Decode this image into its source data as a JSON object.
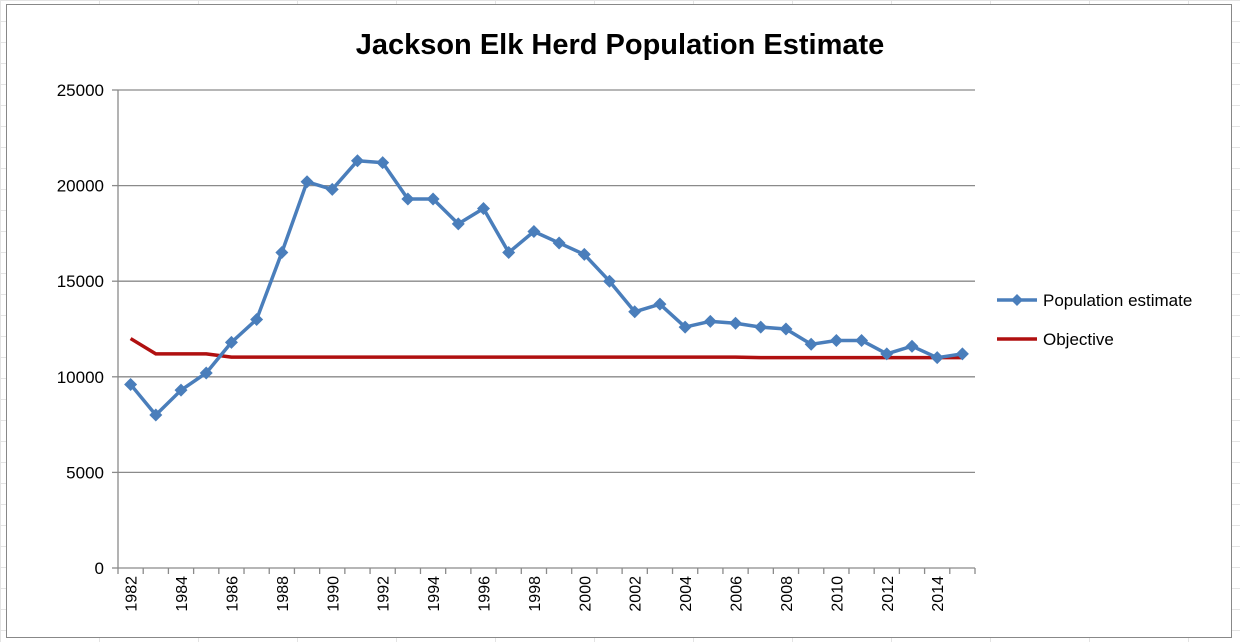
{
  "chart_data": {
    "type": "line",
    "title": "Jackson Elk Herd Population Estimate",
    "xlabel": "",
    "ylabel": "",
    "ylim": [
      0,
      25000
    ],
    "yticks": [
      0,
      5000,
      10000,
      15000,
      20000,
      25000
    ],
    "grid": true,
    "legend_position": "right",
    "x": [
      1982,
      1983,
      1984,
      1985,
      1986,
      1987,
      1988,
      1989,
      1990,
      1991,
      1992,
      1993,
      1994,
      1995,
      1996,
      1997,
      1998,
      1999,
      2000,
      2001,
      2002,
      2003,
      2004,
      2005,
      2006,
      2007,
      2008,
      2009,
      2010,
      2011,
      2012,
      2013,
      2014,
      2015
    ],
    "xtick_labels": [
      "1982",
      "1984",
      "1986",
      "1988",
      "1990",
      "1992",
      "1994",
      "1996",
      "1998",
      "2000",
      "2002",
      "2004",
      "2006",
      "2008",
      "2010",
      "2012",
      "2014"
    ],
    "series": [
      {
        "name": "Population estimate",
        "color": "#4a7ebb",
        "marker": "diamond",
        "values": [
          9600,
          8000,
          9300,
          10200,
          11800,
          13000,
          16500,
          20200,
          19800,
          21300,
          21200,
          19300,
          19300,
          18000,
          18800,
          16500,
          17600,
          17000,
          16400,
          15000,
          13400,
          13800,
          12600,
          12900,
          12800,
          12600,
          12500,
          11700,
          11900,
          11900,
          11200,
          11600,
          11000,
          11200
        ]
      },
      {
        "name": "Objective",
        "color": "#b01010",
        "marker": "none",
        "values": [
          12000,
          11200,
          11200,
          11200,
          11029,
          11029,
          11029,
          11029,
          11029,
          11029,
          11029,
          11029,
          11029,
          11029,
          11029,
          11029,
          11029,
          11029,
          11029,
          11029,
          11029,
          11029,
          11029,
          11029,
          11029,
          11000,
          11000,
          11000,
          11000,
          11000,
          11000,
          11000,
          11000,
          11000
        ]
      }
    ]
  }
}
